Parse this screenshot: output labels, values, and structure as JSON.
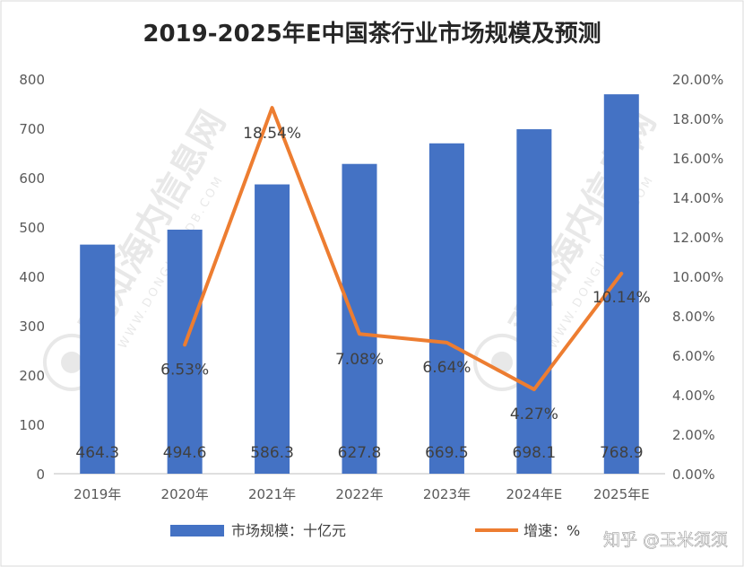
{
  "chart_data": {
    "type": "bar+line",
    "title": "2019-2025年E中国茶行业市场规模及预测",
    "categories": [
      "2019年",
      "2020年",
      "2021年",
      "2022年",
      "2023年",
      "2024年E",
      "2025年E"
    ],
    "series": [
      {
        "name": "市场规模：十亿元",
        "type": "bar",
        "axis": "left",
        "values": [
          464.3,
          494.6,
          586.3,
          627.8,
          669.5,
          698.1,
          768.9
        ],
        "labels": [
          "464.3",
          "494.6",
          "586.3",
          "627.8",
          "669.5",
          "698.1",
          "768.9"
        ],
        "color": "#4472C4"
      },
      {
        "name": "增速：%",
        "type": "line",
        "axis": "right",
        "values": [
          null,
          6.53,
          18.54,
          7.08,
          6.64,
          4.27,
          10.14
        ],
        "labels": [
          "",
          "6.53%",
          "18.54%",
          "7.08%",
          "6.64%",
          "4.27%",
          "10.14%"
        ],
        "color": "#ED7D31"
      }
    ],
    "y_left": {
      "min": 0,
      "max": 800,
      "ticks": [
        "0",
        "100",
        "200",
        "300",
        "400",
        "500",
        "600",
        "700",
        "800"
      ]
    },
    "y_right": {
      "min": 0,
      "max": 20,
      "ticks": [
        "0.00%",
        "2.00%",
        "4.00%",
        "6.00%",
        "8.00%",
        "10.00%",
        "12.00%",
        "14.00%",
        "16.00%",
        "18.00%",
        "20.00%"
      ]
    },
    "grid": false,
    "legend": "bottom"
  },
  "watermark": {
    "brand": "观知海内信息网",
    "url": "WWW.DONGJANGDB.COM"
  },
  "credit": "知乎 @玉米须须"
}
